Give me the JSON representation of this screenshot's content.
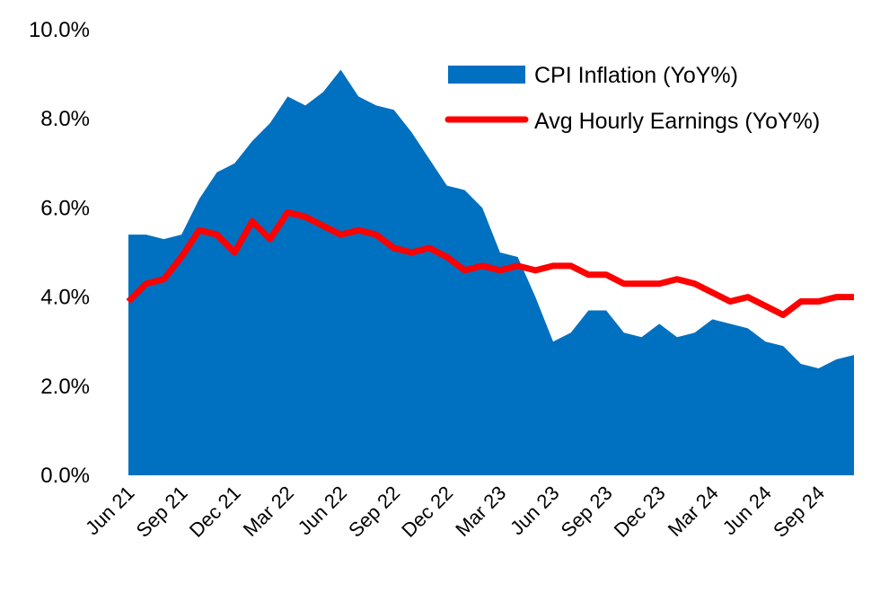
{
  "chart_data": {
    "type": "area",
    "title": "",
    "xlabel": "",
    "ylabel": "",
    "ylim": [
      0,
      10
    ],
    "y_ticks": [
      "0.0%",
      "2.0%",
      "4.0%",
      "6.0%",
      "8.0%",
      "10.0%"
    ],
    "y_tick_values": [
      0,
      2,
      4,
      6,
      8,
      10
    ],
    "grid": false,
    "legend_placement": "top-right",
    "x_ticks": [
      "Jun 21",
      "Sep 21",
      "Dec 21",
      "Mar 22",
      "Jun 22",
      "Sep 22",
      "Dec 22",
      "Mar 23",
      "Jun 23",
      "Sep 23",
      "Dec 23",
      "Mar 24",
      "Jun 24",
      "Sep 24"
    ],
    "x": [
      "2021-06",
      "2021-07",
      "2021-08",
      "2021-09",
      "2021-10",
      "2021-11",
      "2021-12",
      "2022-01",
      "2022-02",
      "2022-03",
      "2022-04",
      "2022-05",
      "2022-06",
      "2022-07",
      "2022-08",
      "2022-09",
      "2022-10",
      "2022-11",
      "2022-12",
      "2023-01",
      "2023-02",
      "2023-03",
      "2023-04",
      "2023-05",
      "2023-06",
      "2023-07",
      "2023-08",
      "2023-09",
      "2023-10",
      "2023-11",
      "2023-12",
      "2024-01",
      "2024-02",
      "2024-03",
      "2024-04",
      "2024-05",
      "2024-06",
      "2024-07",
      "2024-08",
      "2024-09",
      "2024-10",
      "2024-11"
    ],
    "series": [
      {
        "name": "CPI Inflation (YoY%)",
        "type": "area",
        "color": "#0070C0",
        "values": [
          5.4,
          5.4,
          5.3,
          5.4,
          6.2,
          6.8,
          7.0,
          7.5,
          7.9,
          8.5,
          8.3,
          8.6,
          9.1,
          8.5,
          8.3,
          8.2,
          7.7,
          7.1,
          6.5,
          6.4,
          6.0,
          5.0,
          4.9,
          4.0,
          3.0,
          3.2,
          3.7,
          3.7,
          3.2,
          3.1,
          3.4,
          3.1,
          3.2,
          3.5,
          3.4,
          3.3,
          3.0,
          2.9,
          2.5,
          2.4,
          2.6,
          2.7
        ]
      },
      {
        "name": "Avg Hourly Earnings (YoY%)",
        "type": "line",
        "color": "#FF0000",
        "values": [
          3.9,
          4.3,
          4.4,
          4.9,
          5.5,
          5.4,
          5.0,
          5.7,
          5.3,
          5.9,
          5.8,
          5.6,
          5.4,
          5.5,
          5.4,
          5.1,
          5.0,
          5.1,
          4.9,
          4.6,
          4.7,
          4.6,
          4.7,
          4.6,
          4.7,
          4.7,
          4.5,
          4.5,
          4.3,
          4.3,
          4.3,
          4.4,
          4.3,
          4.1,
          3.9,
          4.0,
          3.8,
          3.6,
          3.9,
          3.9,
          4.0,
          4.0
        ]
      }
    ]
  }
}
